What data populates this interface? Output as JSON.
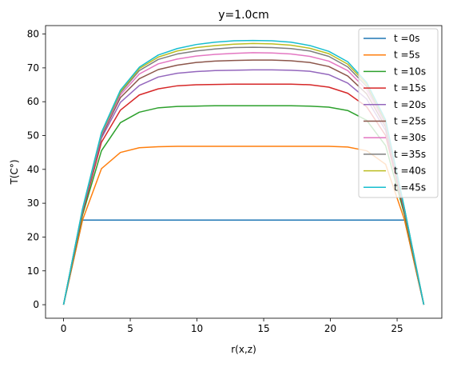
{
  "chart_data": {
    "type": "line",
    "title": "y=1.0cm",
    "xlabel": "r(x,z)",
    "ylabel": "T(C°)",
    "xlim": [
      -1.35,
      28.35
    ],
    "ylim": [
      -4,
      82.5
    ],
    "xticks": [
      0,
      5,
      10,
      15,
      20,
      25
    ],
    "yticks": [
      0,
      10,
      20,
      30,
      40,
      50,
      60,
      70,
      80
    ],
    "legend_position": "top-right",
    "grid": false,
    "x": [
      0,
      1.42,
      2.84,
      4.26,
      5.68,
      7.1,
      8.52,
      9.94,
      11.36,
      12.78,
      14.2,
      15.62,
      17.04,
      18.46,
      19.88,
      21.3,
      22.72,
      24.14,
      25.56,
      27.0
    ],
    "series": [
      {
        "name": "t =0s",
        "color": "#1f77b4",
        "values": [
          0,
          25,
          25,
          25,
          25,
          25,
          25,
          25,
          25,
          25,
          25,
          25,
          25,
          25,
          25,
          25,
          25,
          25,
          25,
          0
        ]
      },
      {
        "name": "t =5s",
        "color": "#ff7f0e",
        "values": [
          0,
          25,
          40.2,
          45,
          46.4,
          46.7,
          46.8,
          46.8,
          46.8,
          46.8,
          46.8,
          46.8,
          46.8,
          46.8,
          46.8,
          46.6,
          45.5,
          41.5,
          25,
          0
        ]
      },
      {
        "name": "t =10s",
        "color": "#2ca02c",
        "values": [
          0,
          26.5,
          45.5,
          53.8,
          56.9,
          58.2,
          58.6,
          58.7,
          58.8,
          58.8,
          58.8,
          58.8,
          58.8,
          58.7,
          58.4,
          57.4,
          54.5,
          47,
          26.5,
          0
        ]
      },
      {
        "name": "t =15s",
        "color": "#d62728",
        "values": [
          0,
          27.2,
          48,
          57.5,
          62,
          63.8,
          64.7,
          65,
          65.1,
          65.2,
          65.2,
          65.2,
          65.2,
          65,
          64.3,
          62.5,
          58.5,
          50,
          27.2,
          0
        ]
      },
      {
        "name": "t =20s",
        "color": "#9467bd",
        "values": [
          0,
          27.6,
          49.2,
          59.8,
          64.8,
          67.3,
          68.4,
          68.9,
          69.2,
          69.3,
          69.4,
          69.4,
          69.3,
          69,
          68,
          65.5,
          60.8,
          51.5,
          27.6,
          0
        ]
      },
      {
        "name": "t =25s",
        "color": "#8c564b",
        "values": [
          0,
          27.8,
          49.8,
          61.2,
          66.8,
          69.5,
          70.8,
          71.6,
          72,
          72.2,
          72.3,
          72.3,
          72.1,
          71.6,
          70.4,
          67.6,
          62.3,
          52.5,
          27.8,
          0
        ]
      },
      {
        "name": "t =30s",
        "color": "#e377c2",
        "values": [
          0,
          28,
          50.2,
          62,
          68.2,
          71.2,
          72.6,
          73.5,
          74,
          74.3,
          74.5,
          74.4,
          74.1,
          73.4,
          72,
          69.2,
          63.5,
          53.3,
          28,
          0
        ]
      },
      {
        "name": "t =35s",
        "color": "#7f7f7f",
        "values": [
          0,
          28.1,
          50.5,
          62.6,
          69.2,
          72.5,
          74.1,
          75,
          75.6,
          76,
          76.1,
          76,
          75.7,
          75,
          73.4,
          70.3,
          64.5,
          53.8,
          28.1,
          0
        ]
      },
      {
        "name": "t =40s",
        "color": "#bcbd22",
        "values": [
          0,
          28.2,
          50.7,
          63,
          69.8,
          73.2,
          75,
          76,
          76.6,
          77,
          77.2,
          77.1,
          76.7,
          75.8,
          74.2,
          71.1,
          65.2,
          54.2,
          28.2,
          0
        ]
      },
      {
        "name": "t =45s",
        "color": "#17becf",
        "values": [
          0,
          28.3,
          50.9,
          63.4,
          70.2,
          73.8,
          75.7,
          76.9,
          77.6,
          78,
          78.1,
          78,
          77.6,
          76.6,
          74.9,
          71.8,
          65.7,
          54.6,
          28.3,
          0
        ]
      }
    ]
  }
}
